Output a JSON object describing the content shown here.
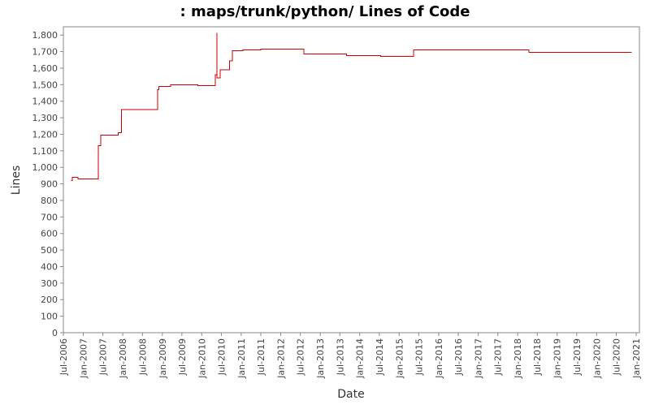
{
  "chart_data": {
    "type": "line",
    "title": ": maps/trunk/python/ Lines of Code",
    "xlabel": "Date",
    "ylabel": "Lines",
    "x_axis_kind": "date",
    "xlim": [
      "2006-07-01",
      "2021-01-31"
    ],
    "ylim": [
      0,
      1850
    ],
    "y_ticks": [
      0,
      100,
      200,
      300,
      400,
      500,
      600,
      700,
      800,
      900,
      1000,
      1100,
      1200,
      1300,
      1400,
      1500,
      1600,
      1700,
      1800
    ],
    "y_tick_labels": [
      "0",
      "100",
      "200",
      "300",
      "400",
      "500",
      "600",
      "700",
      "800",
      "900",
      "1,000",
      "1,100",
      "1,200",
      "1,300",
      "1,400",
      "1,500",
      "1,600",
      "1,700",
      "1,800"
    ],
    "x_ticks": [
      "2006-07-01",
      "2007-01-01",
      "2007-07-01",
      "2008-01-01",
      "2008-07-01",
      "2009-01-01",
      "2009-07-01",
      "2010-01-01",
      "2010-07-01",
      "2011-01-01",
      "2011-07-01",
      "2012-01-01",
      "2012-07-01",
      "2013-01-01",
      "2013-07-01",
      "2014-01-01",
      "2014-07-01",
      "2015-01-01",
      "2015-07-01",
      "2016-01-01",
      "2016-07-01",
      "2017-01-01",
      "2017-07-01",
      "2018-01-01",
      "2018-07-01",
      "2019-01-01",
      "2019-07-01",
      "2020-01-01",
      "2020-07-01",
      "2021-01-01"
    ],
    "x_tick_labels": [
      "Jul-2006",
      "Jan-2007",
      "Jul-2007",
      "Jan-2008",
      "Jul-2008",
      "Jan-2009",
      "Jul-2009",
      "Jan-2010",
      "Jul-2010",
      "Jan-2011",
      "Jul-2011",
      "Jan-2012",
      "Jul-2012",
      "Jan-2013",
      "Jul-2013",
      "Jan-2014",
      "Jul-2014",
      "Jan-2015",
      "Jul-2015",
      "Jan-2016",
      "Jul-2016",
      "Jan-2017",
      "Jul-2017",
      "Jan-2018",
      "Jul-2018",
      "Jan-2019",
      "Jul-2019",
      "Jan-2020",
      "Jul-2020",
      "Jan-2021"
    ],
    "grid": false,
    "legend": "none",
    "series": [
      {
        "color": "#cc0000",
        "step": true,
        "points": [
          [
            "2006-09-10",
            920
          ],
          [
            "2006-09-20",
            940
          ],
          [
            "2006-11-15",
            930
          ],
          [
            "2007-05-20",
            1130
          ],
          [
            "2007-06-05",
            1130
          ],
          [
            "2007-06-10",
            1195
          ],
          [
            "2007-11-20",
            1210
          ],
          [
            "2007-12-20",
            1350
          ],
          [
            "2008-11-20",
            1470
          ],
          [
            "2008-12-01",
            1490
          ],
          [
            "2009-03-20",
            1500
          ],
          [
            "2009-11-25",
            1495
          ],
          [
            "2010-05-01",
            1495
          ],
          [
            "2010-05-05",
            1560
          ],
          [
            "2010-05-20",
            1810
          ],
          [
            "2010-05-22",
            1540
          ],
          [
            "2010-06-20",
            1590
          ],
          [
            "2010-09-15",
            1645
          ],
          [
            "2010-10-10",
            1705
          ],
          [
            "2011-01-15",
            1710
          ],
          [
            "2011-07-01",
            1715
          ],
          [
            "2012-08-01",
            1685
          ],
          [
            "2013-09-01",
            1675
          ],
          [
            "2014-07-15",
            1670
          ],
          [
            "2015-05-15",
            1710
          ],
          [
            "2018-04-15",
            1695
          ],
          [
            "2020-11-20",
            1695
          ]
        ]
      }
    ]
  }
}
